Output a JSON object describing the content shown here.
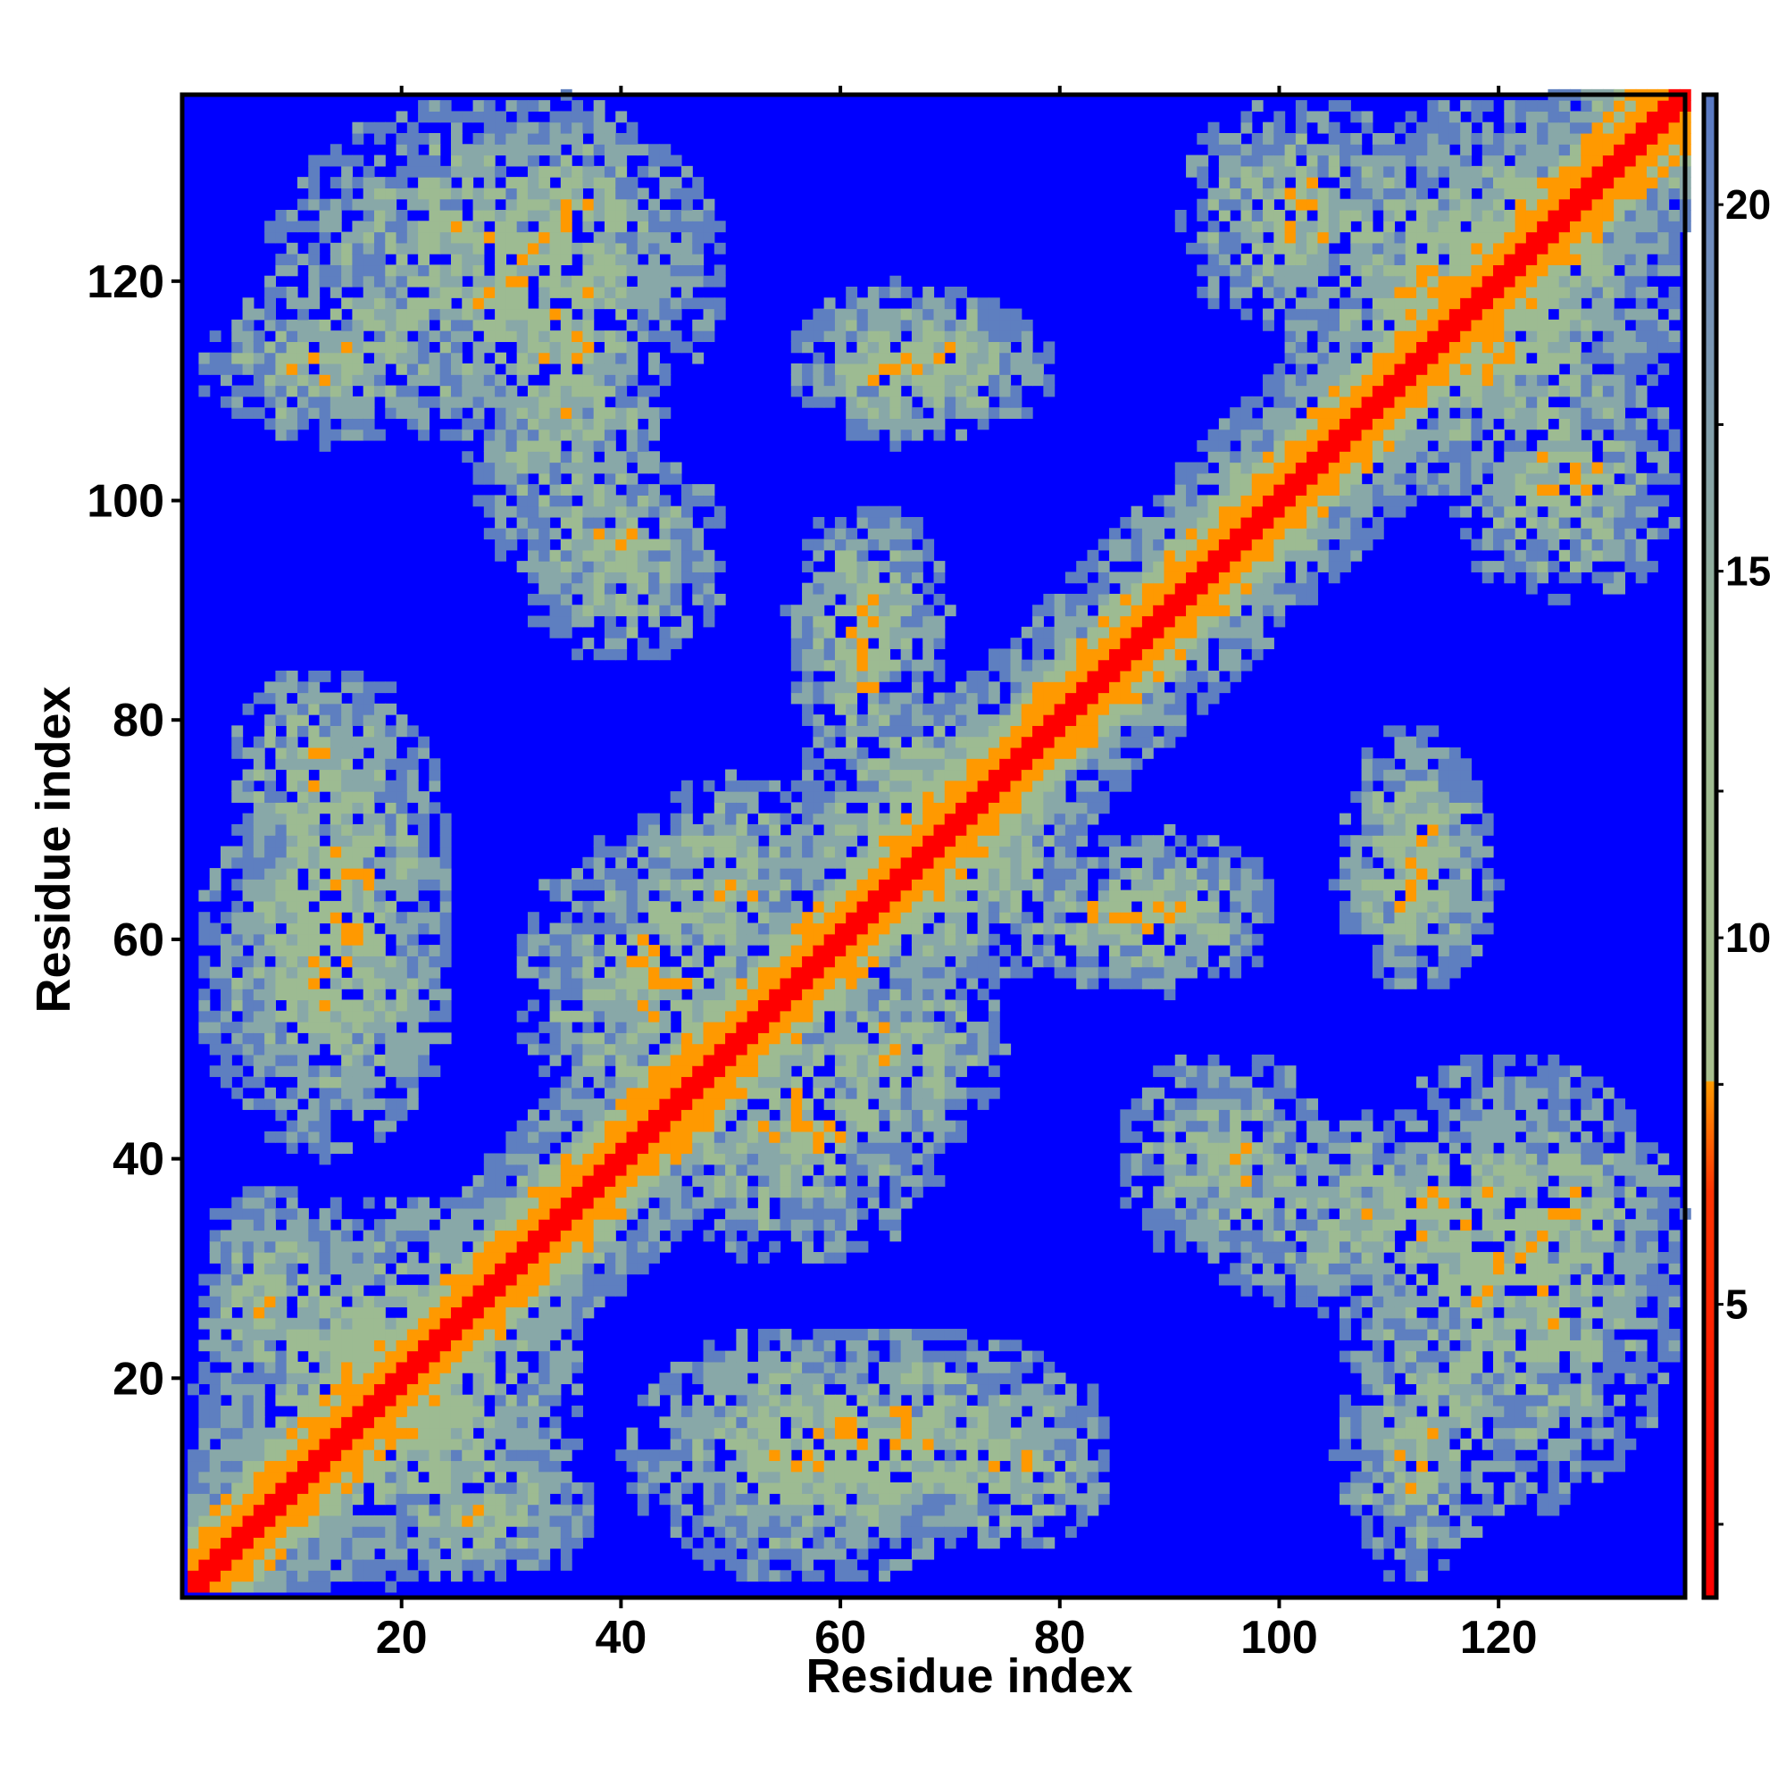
{
  "chart_data": {
    "type": "heatmap",
    "title": "",
    "xlabel": "Residue index",
    "ylabel": "Residue index",
    "n_residues": 137,
    "xlim": [
      1,
      137
    ],
    "ylim": [
      1,
      137
    ],
    "x_ticks": [
      20,
      40,
      60,
      80,
      100,
      120
    ],
    "y_ticks": [
      20,
      40,
      60,
      80,
      100,
      120
    ],
    "colorbar": {
      "range": [
        1,
        21.5
      ],
      "ticks": [
        5,
        10,
        15,
        20
      ],
      "cutoff": 8,
      "colors": {
        "near": "#ff0000",
        "mid": "#ff9900",
        "far_low": "#9dbb92",
        "far_high": "#5e7fc0",
        "beyond": "#0000ff"
      }
    },
    "background_color": "#0000ff",
    "grid": false,
    "legend": "colorbar-right",
    "diagonal_band": {
      "from": 1,
      "to": 137,
      "width": 6
    },
    "contact_domains": [
      {
        "x": [
          1,
          37
        ],
        "y": [
          1,
          37
        ]
      },
      {
        "x": [
          1,
          14
        ],
        "y": [
          17,
          38
        ]
      },
      {
        "x": [
          1,
          25
        ],
        "y": [
          40,
          75
        ]
      },
      {
        "x": [
          4,
          20
        ],
        "y": [
          65,
          85
        ]
      },
      {
        "x": [
          7,
          50
        ],
        "y": [
          105,
          137
        ]
      },
      {
        "x": [
          30,
          50
        ],
        "y": [
          85,
          105
        ]
      },
      {
        "x": [
          30,
          55
        ],
        "y": [
          42,
          70
        ]
      },
      {
        "x": [
          40,
          85
        ],
        "y": [
          5,
          25
        ]
      },
      {
        "x": [
          55,
          75
        ],
        "y": [
          40,
          60
        ]
      },
      {
        "x": [
          55,
          85
        ],
        "y": [
          55,
          80
        ]
      },
      {
        "x": [
          55,
          70
        ],
        "y": [
          80,
          100
        ]
      },
      {
        "x": [
          55,
          80
        ],
        "y": [
          105,
          120
        ]
      },
      {
        "x": [
          75,
          95
        ],
        "y": [
          55,
          70
        ]
      },
      {
        "x": [
          90,
          105
        ],
        "y": [
          90,
          105
        ]
      },
      {
        "x": [
          90,
          137
        ],
        "y": [
          25,
          45
        ]
      },
      {
        "x": [
          100,
          137
        ],
        "y": [
          100,
          137
        ]
      },
      {
        "x": [
          105,
          120
        ],
        "y": [
          110,
          130
        ]
      },
      {
        "x": [
          105,
          120
        ],
        "y": [
          1,
          25
        ]
      },
      {
        "x": [
          105,
          120
        ],
        "y": [
          55,
          75
        ]
      },
      {
        "x": [
          115,
          137
        ],
        "y": [
          90,
          115
        ]
      },
      {
        "x": [
          115,
          137
        ],
        "y": [
          25,
          45
        ]
      }
    ]
  }
}
